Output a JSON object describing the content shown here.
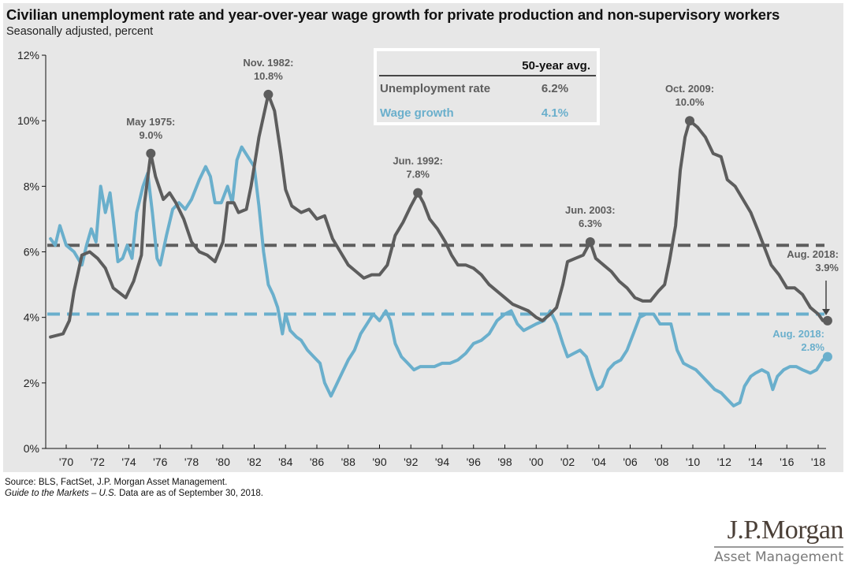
{
  "header": {
    "title": "Civilian unemployment rate and year-over-year wage growth for private production and non-supervisory workers",
    "subtitle": "Seasonally adjusted, percent"
  },
  "inset_table": {
    "column_header": "50-year avg.",
    "rows": [
      {
        "label": "Unemployment rate",
        "value": "6.2%",
        "color": "#5d5d5d"
      },
      {
        "label": "Wage growth",
        "value": "4.1%",
        "color": "#6aafcc"
      }
    ]
  },
  "footer": {
    "source": "Source: BLS, FactSet, J.P. Morgan Asset Management.",
    "guide_italic": "Guide to the Markets – U.S.",
    "guide_rest": " Data are as of September 30, 2018."
  },
  "logo": {
    "brand": "J.P.Morgan",
    "sub": "Asset Management"
  },
  "chart_data": {
    "type": "line",
    "title": "Civilian unemployment rate and year-over-year wage growth for private production and non-supervisory workers",
    "subtitle": "Seasonally adjusted, percent",
    "xlabel": "",
    "ylabel": "",
    "xlim": [
      1968.7,
      1018.9
    ],
    "ylim": [
      0,
      12
    ],
    "y_ticks": [
      0,
      2,
      4,
      6,
      8,
      10,
      12
    ],
    "y_tick_labels": [
      "0%",
      "2%",
      "4%",
      "6%",
      "8%",
      "10%",
      "12%"
    ],
    "x_ticks": [
      1970,
      1972,
      1974,
      1976,
      1978,
      1980,
      1982,
      1984,
      1986,
      1988,
      1990,
      1992,
      1994,
      1996,
      1998,
      2000,
      2002,
      2004,
      2006,
      2008,
      2010,
      2012,
      2014,
      2016,
      2018
    ],
    "x_tick_labels": [
      "'70",
      "'72",
      "'74",
      "'76",
      "'78",
      "'80",
      "'82",
      "'84",
      "'86",
      "'88",
      "'90",
      "'92",
      "'94",
      "'96",
      "'98",
      "'00",
      "'02",
      "'04",
      "'06",
      "'08",
      "'10",
      "'12",
      "'14",
      "'16",
      "'18"
    ],
    "grid": false,
    "legend": "top-center inset table",
    "series": [
      {
        "name": "Unemployment rate",
        "color": "#5d5d5d",
        "x": [
          1969.0,
          1969.8,
          1970.2,
          1970.5,
          1971.0,
          1971.5,
          1972.0,
          1972.5,
          1973.0,
          1973.8,
          1974.3,
          1974.8,
          1975.0,
          1975.4,
          1975.7,
          1976.2,
          1976.6,
          1977.0,
          1977.5,
          1978.0,
          1978.5,
          1979.0,
          1979.5,
          1980.0,
          1980.3,
          1980.7,
          1981.0,
          1981.5,
          1981.8,
          1982.3,
          1982.9,
          1983.3,
          1983.7,
          1984.0,
          1984.4,
          1985.0,
          1985.5,
          1986.0,
          1986.5,
          1987.0,
          1987.5,
          1988.0,
          1988.5,
          1989.0,
          1989.5,
          1990.0,
          1990.5,
          1991.0,
          1991.5,
          1992.0,
          1992.45,
          1992.8,
          1993.2,
          1993.7,
          1994.2,
          1994.6,
          1995.0,
          1995.5,
          1996.0,
          1996.5,
          1997.0,
          1997.5,
          1998.0,
          1998.5,
          1999.0,
          1999.5,
          2000.0,
          2000.4,
          2000.9,
          2001.3,
          2001.7,
          2002.0,
          2002.5,
          2003.0,
          2003.45,
          2003.8,
          2004.3,
          2004.8,
          2005.3,
          2005.8,
          2006.3,
          2006.8,
          2007.3,
          2007.8,
          2008.2,
          2008.5,
          2008.9,
          2009.2,
          2009.5,
          2009.8,
          2010.3,
          2010.8,
          2011.3,
          2011.8,
          2012.2,
          2012.7,
          2013.2,
          2013.7,
          2014.2,
          2014.6,
          2015.0,
          2015.5,
          2016.0,
          2016.5,
          2017.0,
          2017.5,
          2018.0,
          2018.3,
          2018.6
        ],
        "values": [
          3.4,
          3.5,
          3.9,
          4.8,
          5.9,
          6.0,
          5.8,
          5.5,
          4.9,
          4.6,
          5.1,
          5.9,
          7.5,
          9.0,
          8.3,
          7.6,
          7.8,
          7.5,
          7.0,
          6.3,
          6.0,
          5.9,
          5.7,
          6.3,
          7.5,
          7.5,
          7.2,
          7.3,
          8.0,
          9.5,
          10.8,
          10.3,
          9.0,
          7.9,
          7.4,
          7.2,
          7.3,
          7.0,
          7.1,
          6.4,
          6.0,
          5.6,
          5.4,
          5.2,
          5.3,
          5.3,
          5.6,
          6.5,
          6.9,
          7.4,
          7.8,
          7.5,
          7.0,
          6.7,
          6.3,
          5.9,
          5.6,
          5.6,
          5.5,
          5.3,
          5.0,
          4.8,
          4.6,
          4.4,
          4.3,
          4.2,
          4.0,
          3.9,
          4.1,
          4.3,
          5.0,
          5.7,
          5.8,
          5.9,
          6.3,
          5.8,
          5.6,
          5.4,
          5.1,
          4.9,
          4.6,
          4.5,
          4.5,
          4.8,
          5.0,
          5.7,
          6.8,
          8.5,
          9.5,
          10.0,
          9.8,
          9.5,
          9.0,
          8.9,
          8.2,
          8.0,
          7.6,
          7.2,
          6.6,
          6.1,
          5.6,
          5.3,
          4.9,
          4.9,
          4.7,
          4.3,
          4.1,
          3.9,
          3.9
        ],
        "average": 6.2
      },
      {
        "name": "Wage growth",
        "color": "#6aafcc",
        "x": [
          1969.0,
          1969.3,
          1969.6,
          1970.0,
          1970.5,
          1971.0,
          1971.3,
          1971.6,
          1971.9,
          1972.2,
          1972.5,
          1972.8,
          1973.0,
          1973.3,
          1973.6,
          1973.9,
          1974.2,
          1974.5,
          1974.9,
          1975.2,
          1975.5,
          1975.8,
          1976.0,
          1976.4,
          1976.8,
          1977.2,
          1977.6,
          1978.0,
          1978.5,
          1978.9,
          1979.2,
          1979.5,
          1979.9,
          1980.3,
          1980.6,
          1980.9,
          1981.2,
          1981.6,
          1982.0,
          1982.3,
          1982.6,
          1982.9,
          1983.2,
          1983.5,
          1983.8,
          1984.0,
          1984.3,
          1984.7,
          1985.0,
          1985.4,
          1985.8,
          1986.2,
          1986.5,
          1986.9,
          1987.2,
          1987.6,
          1988.0,
          1988.4,
          1988.8,
          1989.2,
          1989.6,
          1990.0,
          1990.4,
          1990.7,
          1991.0,
          1991.4,
          1991.8,
          1992.2,
          1992.6,
          1993.0,
          1993.5,
          1994.0,
          1994.5,
          1995.0,
          1995.5,
          1996.0,
          1996.5,
          1997.0,
          1997.5,
          1998.0,
          1998.4,
          1998.8,
          1999.2,
          1999.6,
          2000.0,
          2000.5,
          2000.9,
          2001.3,
          2001.7,
          2002.0,
          2002.4,
          2002.8,
          2003.2,
          2003.6,
          2003.9,
          2004.2,
          2004.6,
          2005.0,
          2005.4,
          2005.8,
          2006.2,
          2006.6,
          2007.0,
          2007.5,
          2007.9,
          2008.3,
          2008.6,
          2009.0,
          2009.4,
          2009.8,
          2010.2,
          2010.6,
          2011.0,
          2011.4,
          2011.8,
          2012.2,
          2012.6,
          2013.0,
          2013.3,
          2013.7,
          2014.0,
          2014.4,
          2014.8,
          2015.1,
          2015.4,
          2015.8,
          2016.2,
          2016.6,
          2017.0,
          2017.5,
          2017.9,
          2018.3,
          2018.6
        ],
        "values": [
          6.4,
          6.2,
          6.8,
          6.2,
          6.0,
          5.6,
          6.2,
          6.7,
          6.3,
          8.0,
          7.2,
          7.8,
          7.0,
          5.7,
          5.8,
          6.2,
          5.8,
          7.2,
          8.0,
          8.4,
          7.2,
          5.8,
          5.6,
          6.5,
          7.3,
          7.5,
          7.3,
          7.6,
          8.2,
          8.6,
          8.3,
          7.5,
          7.5,
          8.0,
          7.5,
          8.8,
          9.2,
          8.9,
          8.6,
          7.4,
          6.0,
          5.0,
          4.7,
          4.3,
          3.5,
          4.1,
          3.6,
          3.4,
          3.3,
          3.0,
          2.8,
          2.6,
          2.0,
          1.6,
          1.9,
          2.3,
          2.7,
          3.0,
          3.5,
          3.8,
          4.1,
          3.9,
          4.2,
          3.9,
          3.2,
          2.8,
          2.6,
          2.4,
          2.5,
          2.5,
          2.5,
          2.6,
          2.6,
          2.7,
          2.9,
          3.2,
          3.3,
          3.5,
          3.9,
          4.1,
          4.2,
          3.8,
          3.6,
          3.7,
          3.8,
          3.9,
          4.2,
          3.8,
          3.2,
          2.8,
          2.9,
          3.0,
          2.8,
          2.2,
          1.8,
          1.9,
          2.4,
          2.6,
          2.7,
          3.0,
          3.5,
          4.0,
          4.1,
          4.1,
          3.8,
          3.8,
          3.8,
          3.0,
          2.6,
          2.5,
          2.4,
          2.2,
          2.0,
          1.8,
          1.7,
          1.5,
          1.3,
          1.4,
          1.9,
          2.2,
          2.3,
          2.4,
          2.3,
          1.8,
          2.2,
          2.4,
          2.5,
          2.5,
          2.4,
          2.3,
          2.4,
          2.7,
          2.8
        ],
        "average": 4.1
      }
    ],
    "annotations": [
      {
        "series": "Unemployment rate",
        "x": 1975.4,
        "y": 9.0,
        "line1": "May 1975:",
        "line2": "9.0%"
      },
      {
        "series": "Unemployment rate",
        "x": 1982.9,
        "y": 10.8,
        "line1": "Nov. 1982:",
        "line2": "10.8%"
      },
      {
        "series": "Unemployment rate",
        "x": 1992.45,
        "y": 7.8,
        "line1": "Jun. 1992:",
        "line2": "7.8%"
      },
      {
        "series": "Unemployment rate",
        "x": 2003.45,
        "y": 6.3,
        "line1": "Jun. 2003:",
        "line2": "6.3%"
      },
      {
        "series": "Unemployment rate",
        "x": 2009.8,
        "y": 10.0,
        "line1": "Oct. 2009:",
        "line2": "10.0%"
      },
      {
        "series": "Unemployment rate",
        "x": 2018.6,
        "y": 3.9,
        "line1": "Aug. 2018:",
        "line2": "3.9%"
      },
      {
        "series": "Wage growth",
        "x": 2018.6,
        "y": 2.8,
        "line1": "Aug. 2018:",
        "line2": "2.8%"
      }
    ]
  }
}
